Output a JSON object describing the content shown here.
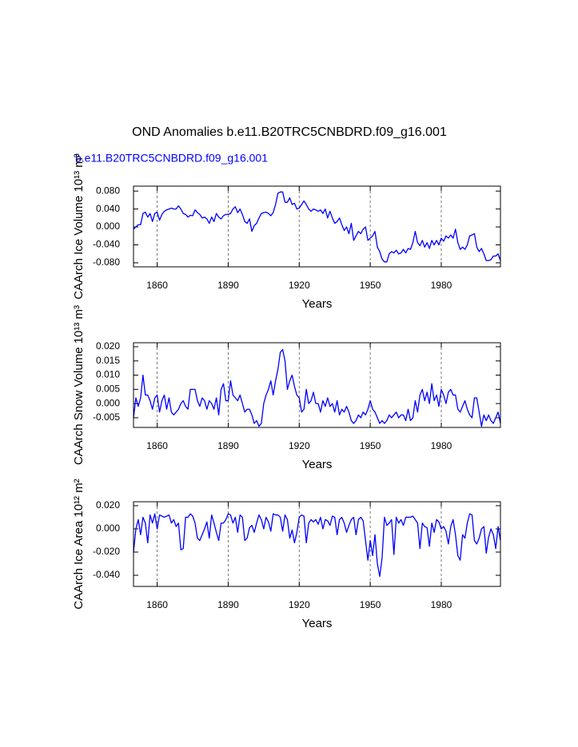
{
  "chart_data": [
    {
      "type": "line",
      "title": "OND Anomalies b.e11.B20TRC5CNBDRD.f09_g16.001",
      "subtitle": "b.e11.B20TRC5CNBDRD.f09_g16.001",
      "xlabel": "Years",
      "ylabel": "CAArch Ice Volume 10¹³ m³",
      "color": "#0000ff",
      "xgrid": true,
      "xlim": [
        1850,
        2005
      ],
      "xticks": [
        1860,
        1890,
        1920,
        1950,
        1980
      ],
      "ylim": [
        -0.089,
        0.091
      ],
      "yticks": [
        {
          "value": 0.08,
          "label": "0.080"
        },
        {
          "value": 0.04,
          "label": "0.040"
        },
        {
          "value": 0,
          "label": "0.000"
        },
        {
          "value": -0.04,
          "label": "-0.040"
        },
        {
          "value": -0.08,
          "label": "-0.080"
        }
      ],
      "x": [
        1850,
        1851,
        1852,
        1853,
        1854,
        1855,
        1856,
        1857,
        1858,
        1859,
        1860,
        1861,
        1862,
        1863,
        1864,
        1865,
        1866,
        1867,
        1868,
        1869,
        1870,
        1871,
        1872,
        1873,
        1874,
        1875,
        1876,
        1877,
        1878,
        1879,
        1880,
        1881,
        1882,
        1883,
        1884,
        1885,
        1886,
        1887,
        1888,
        1889,
        1890,
        1891,
        1892,
        1893,
        1894,
        1895,
        1896,
        1897,
        1898,
        1899,
        1900,
        1901,
        1902,
        1903,
        1904,
        1905,
        1906,
        1907,
        1908,
        1909,
        1910,
        1911,
        1912,
        1913,
        1914,
        1915,
        1916,
        1917,
        1918,
        1919,
        1920,
        1921,
        1922,
        1923,
        1924,
        1925,
        1926,
        1927,
        1928,
        1929,
        1930,
        1931,
        1932,
        1933,
        1934,
        1935,
        1936,
        1937,
        1938,
        1939,
        1940,
        1941,
        1942,
        1943,
        1944,
        1945,
        1946,
        1947,
        1948,
        1949,
        1950,
        1951,
        1952,
        1953,
        1954,
        1955,
        1956,
        1957,
        1958,
        1959,
        1960,
        1961,
        1962,
        1963,
        1964,
        1965,
        1966,
        1967,
        1968,
        1969,
        1970,
        1971,
        1972,
        1973,
        1974,
        1975,
        1976,
        1977,
        1978,
        1979,
        1980,
        1981,
        1982,
        1983,
        1984,
        1985,
        1986,
        1987,
        1988,
        1989,
        1990,
        1991,
        1992,
        1993,
        1994,
        1995,
        1996,
        1997,
        1998,
        1999,
        2000,
        2001,
        2002,
        2003,
        2004,
        2005
      ],
      "values": [
        -0.005,
        0.0,
        0.005,
        0.005,
        0.03,
        0.033,
        0.022,
        0.03,
        0.012,
        0.03,
        0.033,
        0.015,
        0.028,
        0.035,
        0.038,
        0.04,
        0.042,
        0.04,
        0.04,
        0.047,
        0.04,
        0.03,
        0.028,
        0.022,
        0.026,
        0.025,
        0.038,
        0.032,
        0.028,
        0.02,
        0.022,
        0.018,
        0.008,
        0.022,
        0.012,
        0.03,
        0.022,
        0.018,
        0.025,
        0.028,
        0.028,
        0.03,
        0.04,
        0.045,
        0.032,
        0.04,
        0.028,
        0.012,
        0.008,
        0.018,
        -0.01,
        0.003,
        0.008,
        0.02,
        0.03,
        0.032,
        0.033,
        0.03,
        0.025,
        0.032,
        0.05,
        0.075,
        0.078,
        0.078,
        0.055,
        0.055,
        0.065,
        0.05,
        0.053,
        0.04,
        0.042,
        0.05,
        0.058,
        0.05,
        0.04,
        0.035,
        0.04,
        0.038,
        0.035,
        0.038,
        0.03,
        0.04,
        0.02,
        0.035,
        0.02,
        0.008,
        0.012,
        0.02,
        0.005,
        -0.008,
        0.0,
        -0.015,
        0.008,
        -0.03,
        -0.02,
        -0.01,
        -0.015,
        -0.005,
        0.0,
        -0.03,
        -0.025,
        -0.02,
        -0.01,
        -0.045,
        -0.055,
        -0.072,
        -0.078,
        -0.078,
        -0.06,
        -0.055,
        -0.058,
        -0.052,
        -0.06,
        -0.058,
        -0.05,
        -0.058,
        -0.048,
        -0.05,
        -0.035,
        -0.01,
        -0.035,
        -0.042,
        -0.03,
        -0.045,
        -0.035,
        -0.048,
        -0.03,
        -0.04,
        -0.03,
        -0.04,
        -0.025,
        -0.032,
        -0.02,
        -0.025,
        -0.018,
        -0.025,
        -0.005,
        -0.035,
        -0.05,
        -0.045,
        -0.05,
        -0.04,
        -0.02,
        -0.018,
        -0.015,
        -0.045,
        -0.055,
        -0.048,
        -0.06,
        -0.075,
        -0.075,
        -0.073,
        -0.065,
        -0.065,
        -0.06,
        -0.075
      ]
    },
    {
      "type": "line",
      "xlabel": "Years",
      "ylabel": "CAArch Snow Volume 10¹³ m³",
      "color": "#0000ff",
      "xgrid": true,
      "xlim": [
        1850,
        2005
      ],
      "xticks": [
        1860,
        1890,
        1920,
        1950,
        1980
      ],
      "ylim": [
        -0.0084,
        0.0214
      ],
      "yticks": [
        {
          "value": 0.02,
          "label": "0.020"
        },
        {
          "value": 0.015,
          "label": "0.015"
        },
        {
          "value": 0.01,
          "label": "0.010"
        },
        {
          "value": 0.005,
          "label": "0.005"
        },
        {
          "value": 0,
          "label": "0.000"
        },
        {
          "value": -0.005,
          "label": "-0.005"
        }
      ],
      "x": [
        1850,
        1851,
        1852,
        1853,
        1854,
        1855,
        1856,
        1857,
        1858,
        1859,
        1860,
        1861,
        1862,
        1863,
        1864,
        1865,
        1866,
        1867,
        1868,
        1869,
        1870,
        1871,
        1872,
        1873,
        1874,
        1875,
        1876,
        1877,
        1878,
        1879,
        1880,
        1881,
        1882,
        1883,
        1884,
        1885,
        1886,
        1887,
        1888,
        1889,
        1890,
        1891,
        1892,
        1893,
        1894,
        1895,
        1896,
        1897,
        1898,
        1899,
        1900,
        1901,
        1902,
        1903,
        1904,
        1905,
        1906,
        1907,
        1908,
        1909,
        1910,
        1911,
        1912,
        1913,
        1914,
        1915,
        1916,
        1917,
        1918,
        1919,
        1920,
        1921,
        1922,
        1923,
        1924,
        1925,
        1926,
        1927,
        1928,
        1929,
        1930,
        1931,
        1932,
        1933,
        1934,
        1935,
        1936,
        1937,
        1938,
        1939,
        1940,
        1941,
        1942,
        1943,
        1944,
        1945,
        1946,
        1947,
        1948,
        1949,
        1950,
        1951,
        1952,
        1953,
        1954,
        1955,
        1956,
        1957,
        1958,
        1959,
        1960,
        1961,
        1962,
        1963,
        1964,
        1965,
        1966,
        1967,
        1968,
        1969,
        1970,
        1971,
        1972,
        1973,
        1974,
        1975,
        1976,
        1977,
        1978,
        1979,
        1980,
        1981,
        1982,
        1983,
        1984,
        1985,
        1986,
        1987,
        1988,
        1989,
        1990,
        1991,
        1992,
        1993,
        1994,
        1995,
        1996,
        1997,
        1998,
        1999,
        2000,
        2001,
        2002,
        2003,
        2004,
        2005
      ],
      "values": [
        -0.005,
        0.002,
        -0.001,
        0.002,
        0.01,
        0.003,
        0.003,
        0.001,
        -0.002,
        0.002,
        0.003,
        -0.003,
        0.001,
        0.003,
        -0.002,
        0.002,
        -0.003,
        -0.004,
        -0.003,
        -0.002,
        0.0,
        0.001,
        -0.001,
        -0.002,
        0.005,
        0.005,
        0.005,
        0.001,
        -0.001,
        0.002,
        0.001,
        -0.002,
        0.001,
        0.0,
        -0.002,
        0.002,
        -0.004,
        0.005,
        0.007,
        0.001,
        0.001,
        0.008,
        0.003,
        0.002,
        0.001,
        0.003,
        0.0,
        -0.003,
        -0.002,
        -0.002,
        -0.004,
        -0.007,
        -0.006,
        -0.008,
        -0.007,
        0.0,
        0.003,
        0.005,
        0.008,
        0.003,
        0.008,
        0.012,
        0.018,
        0.019,
        0.015,
        0.005,
        0.008,
        0.01,
        0.006,
        0.003,
        0.002,
        -0.003,
        -0.002,
        0.005,
        0.0,
        0.001,
        0.004,
        0.0,
        0.0,
        -0.003,
        0.001,
        -0.001,
        0.002,
        -0.001,
        0.0,
        -0.003,
        0.001,
        -0.004,
        -0.002,
        -0.003,
        -0.001,
        -0.003,
        -0.006,
        -0.007,
        -0.006,
        -0.004,
        -0.005,
        -0.003,
        -0.004,
        -0.002,
        0.001,
        -0.002,
        -0.003,
        -0.005,
        -0.007,
        -0.006,
        -0.007,
        -0.006,
        -0.004,
        -0.005,
        -0.004,
        -0.003,
        -0.005,
        -0.004,
        -0.004,
        -0.006,
        -0.002,
        -0.006,
        -0.005,
        0.001,
        -0.003,
        0.003,
        0.005,
        0.001,
        0.004,
        0.0,
        0.007,
        0.001,
        0.003,
        -0.001,
        0.005,
        0.003,
        0.0,
        0.004,
        0.005,
        0.003,
        0.003,
        -0.002,
        -0.003,
        -0.001,
        0.001,
        -0.002,
        -0.004,
        -0.005,
        0.002,
        0.002,
        -0.003,
        -0.008,
        -0.004,
        -0.006,
        -0.004,
        -0.006,
        -0.007,
        -0.005,
        -0.003,
        -0.007
      ]
    },
    {
      "type": "line",
      "xlabel": "Years",
      "ylabel": "CAArch Ice Area 10¹² m²",
      "color": "#0000ff",
      "xgrid": true,
      "xlim": [
        1850,
        2005
      ],
      "xticks": [
        1860,
        1890,
        1920,
        1950,
        1980
      ],
      "ylim": [
        -0.0496,
        0.0234
      ],
      "yticks": [
        {
          "value": 0.02,
          "label": "0.020"
        },
        {
          "value": 0,
          "label": "0.000"
        },
        {
          "value": -0.02,
          "label": "-0.020"
        },
        {
          "value": -0.04,
          "label": "-0.040"
        }
      ],
      "x": [
        1850,
        1851,
        1852,
        1853,
        1854,
        1855,
        1856,
        1857,
        1858,
        1859,
        1860,
        1861,
        1862,
        1863,
        1864,
        1865,
        1866,
        1867,
        1868,
        1869,
        1870,
        1871,
        1872,
        1873,
        1874,
        1875,
        1876,
        1877,
        1878,
        1879,
        1880,
        1881,
        1882,
        1883,
        1884,
        1885,
        1886,
        1887,
        1888,
        1889,
        1890,
        1891,
        1892,
        1893,
        1894,
        1895,
        1896,
        1897,
        1898,
        1899,
        1900,
        1901,
        1902,
        1903,
        1904,
        1905,
        1906,
        1907,
        1908,
        1909,
        1910,
        1911,
        1912,
        1913,
        1914,
        1915,
        1916,
        1917,
        1918,
        1919,
        1920,
        1921,
        1922,
        1923,
        1924,
        1925,
        1926,
        1927,
        1928,
        1929,
        1930,
        1931,
        1932,
        1933,
        1934,
        1935,
        1936,
        1937,
        1938,
        1939,
        1940,
        1941,
        1942,
        1943,
        1944,
        1945,
        1946,
        1947,
        1948,
        1949,
        1950,
        1951,
        1952,
        1953,
        1954,
        1955,
        1956,
        1957,
        1958,
        1959,
        1960,
        1961,
        1962,
        1963,
        1964,
        1965,
        1966,
        1967,
        1968,
        1969,
        1970,
        1971,
        1972,
        1973,
        1974,
        1975,
        1976,
        1977,
        1978,
        1979,
        1980,
        1981,
        1982,
        1983,
        1984,
        1985,
        1986,
        1987,
        1988,
        1989,
        1990,
        1991,
        1992,
        1993,
        1994,
        1995,
        1996,
        1997,
        1998,
        1999,
        2000,
        2001,
        2002,
        2003,
        2004,
        2005
      ],
      "values": [
        -0.02,
        0.0,
        0.008,
        -0.005,
        0.01,
        0.005,
        -0.012,
        0.012,
        0.005,
        0.013,
        0.0,
        0.012,
        0.011,
        0.01,
        0.011,
        0.012,
        0.005,
        0.008,
        0.002,
        0.005,
        -0.018,
        -0.017,
        0.01,
        0.01,
        0.013,
        0.011,
        0.005,
        -0.008,
        -0.01,
        -0.005,
        0.0,
        0.006,
        -0.008,
        0.012,
        0.005,
        -0.003,
        -0.01,
        0.005,
        0.005,
        0.008,
        0.013,
        0.012,
        0.005,
        0.01,
        -0.003,
        0.012,
        0.01,
        -0.01,
        -0.008,
        0.001,
        0.003,
        -0.003,
        0.005,
        0.012,
        0.008,
        0.0,
        0.01,
        0.006,
        -0.002,
        0.013,
        0.012,
        0.012,
        0.01,
        -0.002,
        0.012,
        0.008,
        -0.008,
        -0.001,
        -0.012,
        -0.003,
        0.01,
        0.012,
        0.011,
        -0.012,
        0.005,
        0.008,
        0.006,
        0.008,
        0.004,
        0.01,
        0.0,
        0.008,
        0.007,
        0.003,
        0.011,
        0.01,
        -0.005,
        0.008,
        0.01,
        0.005,
        -0.003,
        0.003,
        0.008,
        0.01,
        -0.005,
        0.008,
        0.01,
        0.007,
        -0.01,
        -0.027,
        -0.01,
        -0.023,
        -0.005,
        -0.03,
        -0.041,
        -0.025,
        0.01,
        0.003,
        0.005,
        0.008,
        -0.022,
        0.01,
        0.005,
        0.008,
        0.003,
        0.01,
        0.01,
        0.01,
        0.011,
        0.008,
        0.005,
        -0.017,
        0.005,
        0.002,
        0.001,
        -0.015,
        0.005,
        -0.003,
        0.008,
        0.006,
        0.0,
        0.002,
        -0.002,
        -0.013,
        0.002,
        0.008,
        -0.005,
        -0.023,
        -0.027,
        -0.005,
        -0.008,
        0.005,
        0.013,
        0.012,
        -0.01,
        -0.013,
        -0.008,
        0.0,
        0.002,
        -0.021,
        -0.007,
        0.0,
        -0.005,
        -0.017,
        0.002,
        -0.01
      ]
    }
  ]
}
